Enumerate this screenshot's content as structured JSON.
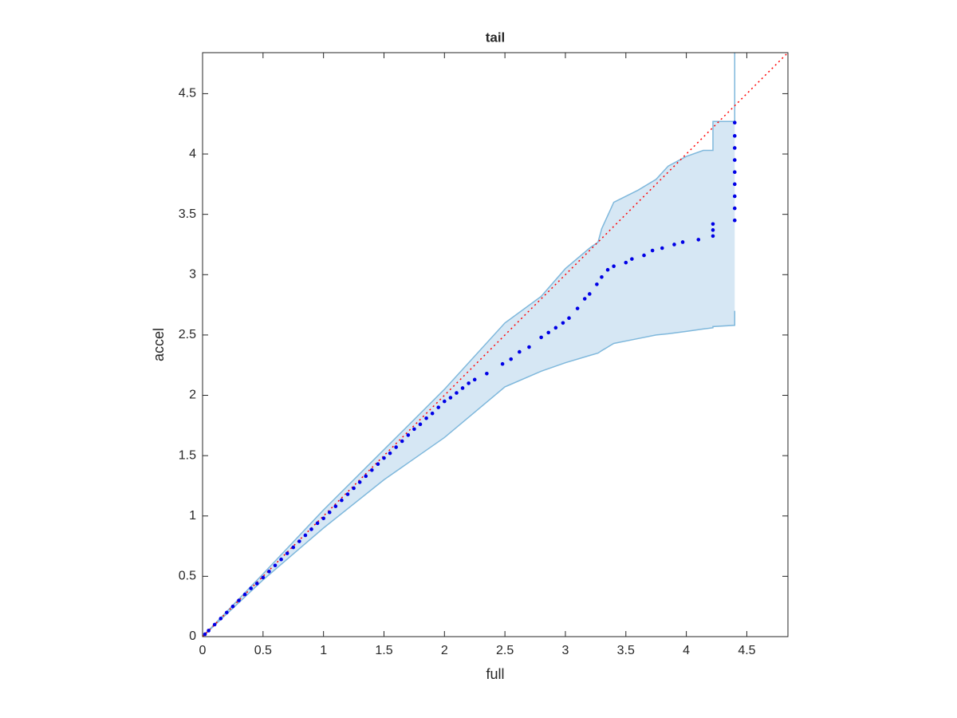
{
  "chart_data": {
    "type": "scatter",
    "title": "tail",
    "xlabel": "full",
    "ylabel": "accel",
    "xlim": [
      0,
      4.84
    ],
    "ylim": [
      0,
      4.84
    ],
    "xticks": [
      0,
      0.5,
      1,
      1.5,
      2,
      2.5,
      3,
      3.5,
      4,
      4.5
    ],
    "yticks": [
      0,
      0.5,
      1,
      1.5,
      2,
      2.5,
      3,
      3.5,
      4,
      4.5
    ],
    "grid": false,
    "series": [
      {
        "type": "band",
        "color": "#7fb8dc",
        "fill": "#d6e7f4",
        "x": [
          0,
          0.5,
          1,
          1.5,
          2,
          2.5,
          2.8,
          3,
          3.2,
          3.27,
          3.3,
          3.4,
          3.6,
          3.75,
          3.85,
          4,
          4.14,
          4.22,
          4.22,
          4.4,
          4.4
        ],
        "upper": [
          0,
          0.52,
          1.05,
          1.55,
          2.05,
          2.6,
          2.82,
          3.05,
          3.22,
          3.27,
          3.38,
          3.6,
          3.7,
          3.79,
          3.9,
          3.98,
          4.03,
          4.03,
          4.27,
          4.27,
          4.84
        ],
        "lower": [
          0,
          0.47,
          0.9,
          1.3,
          1.65,
          2.07,
          2.2,
          2.27,
          2.33,
          2.35,
          2.37,
          2.43,
          2.47,
          2.5,
          2.51,
          2.53,
          2.55,
          2.56,
          2.57,
          2.58,
          2.7
        ]
      },
      {
        "type": "line",
        "color": "#ff0000",
        "style": "dotted",
        "x": [
          0,
          4.84
        ],
        "values": [
          0,
          4.84
        ]
      },
      {
        "type": "scatter",
        "color": "#0000e6",
        "x": [
          0.02,
          0.05,
          0.1,
          0.15,
          0.2,
          0.25,
          0.3,
          0.35,
          0.4,
          0.45,
          0.5,
          0.55,
          0.6,
          0.65,
          0.7,
          0.75,
          0.8,
          0.85,
          0.9,
          0.95,
          1.0,
          1.05,
          1.1,
          1.15,
          1.2,
          1.25,
          1.3,
          1.35,
          1.4,
          1.45,
          1.5,
          1.55,
          1.6,
          1.65,
          1.7,
          1.75,
          1.8,
          1.85,
          1.9,
          1.95,
          2.0,
          2.05,
          2.1,
          2.15,
          2.2,
          2.25,
          2.35,
          2.48,
          2.55,
          2.62,
          2.7,
          2.8,
          2.86,
          2.92,
          2.98,
          3.03,
          3.1,
          3.16,
          3.2,
          3.26,
          3.3,
          3.35,
          3.4,
          3.5,
          3.55,
          3.65,
          3.72,
          3.8,
          3.9,
          3.97,
          4.1,
          4.22,
          4.22,
          4.22,
          4.4,
          4.4,
          4.4,
          4.4,
          4.4,
          4.4,
          4.4,
          4.4,
          4.4
        ],
        "values": [
          0.02,
          0.05,
          0.1,
          0.15,
          0.2,
          0.25,
          0.3,
          0.35,
          0.4,
          0.44,
          0.49,
          0.54,
          0.59,
          0.64,
          0.69,
          0.74,
          0.79,
          0.84,
          0.89,
          0.94,
          0.98,
          1.03,
          1.08,
          1.13,
          1.18,
          1.23,
          1.28,
          1.33,
          1.38,
          1.43,
          1.48,
          1.52,
          1.57,
          1.62,
          1.67,
          1.72,
          1.76,
          1.81,
          1.85,
          1.9,
          1.95,
          1.98,
          2.02,
          2.06,
          2.1,
          2.13,
          2.18,
          2.26,
          2.3,
          2.36,
          2.4,
          2.48,
          2.52,
          2.56,
          2.6,
          2.64,
          2.72,
          2.8,
          2.84,
          2.92,
          2.98,
          3.04,
          3.07,
          3.1,
          3.13,
          3.16,
          3.2,
          3.22,
          3.25,
          3.27,
          3.29,
          3.32,
          3.37,
          3.42,
          3.45,
          3.55,
          3.65,
          3.75,
          3.85,
          3.95,
          4.05,
          4.15,
          4.26
        ]
      }
    ]
  }
}
